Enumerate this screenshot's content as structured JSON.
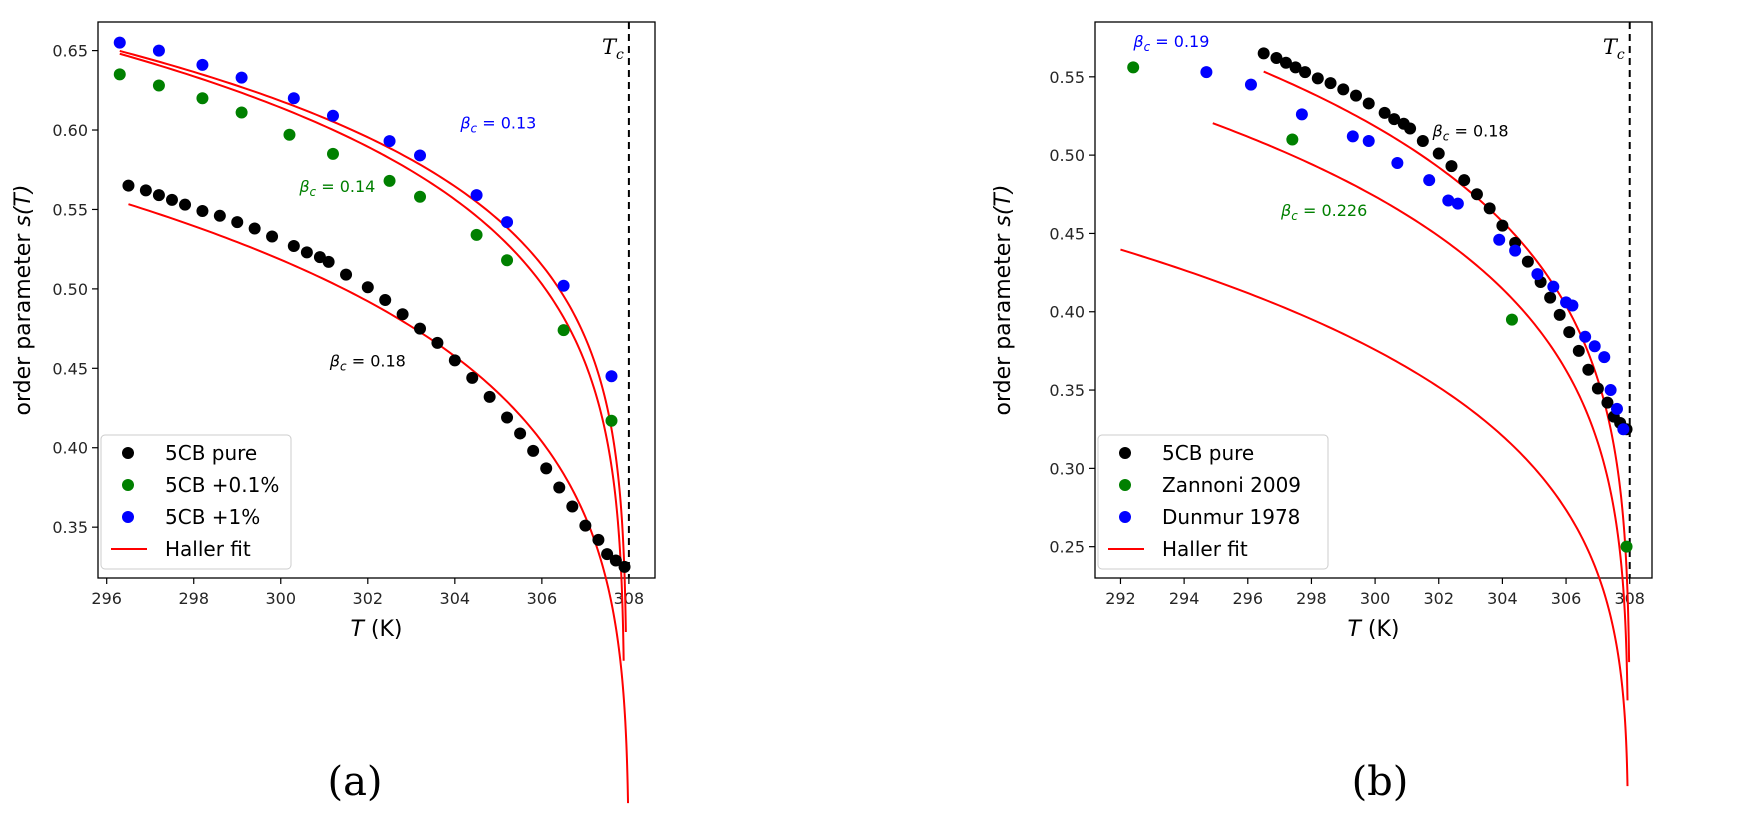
{
  "colors": {
    "pure": "#000000",
    "doped_low": "#008000",
    "doped_high": "#0000ff",
    "fit": "#ff0000"
  },
  "chart_data": [
    {
      "type": "scatter",
      "panel_label": "(a)",
      "xlabel_var": "T",
      "xlabel_unit": " (K)",
      "ylabel_pre": "order parameter ",
      "ylabel_var": "s(T)",
      "xlim": [
        295.8,
        308.6
      ],
      "ylim": [
        0.318,
        0.668
      ],
      "xticks": [
        296,
        298,
        300,
        302,
        304,
        306,
        308
      ],
      "yticks": [
        0.35,
        0.4,
        0.45,
        0.5,
        0.55,
        0.6,
        0.65
      ],
      "tc_value": 308.0,
      "tc_label": "T",
      "tc_sub": "c",
      "series": [
        {
          "name": "5CB pure",
          "color": "#000000",
          "x": [
            296.5,
            296.9,
            297.2,
            297.5,
            297.8,
            298.2,
            298.6,
            299.0,
            299.4,
            299.8,
            300.3,
            300.6,
            300.9,
            301.1,
            301.5,
            302.0,
            302.4,
            302.8,
            303.2,
            303.6,
            304.0,
            304.4,
            304.8,
            305.2,
            305.5,
            305.8,
            306.1,
            306.4,
            306.7,
            307.0,
            307.3,
            307.5,
            307.7,
            307.9
          ],
          "y": [
            0.565,
            0.562,
            0.559,
            0.556,
            0.553,
            0.549,
            0.546,
            0.542,
            0.538,
            0.533,
            0.527,
            0.523,
            0.52,
            0.517,
            0.509,
            0.501,
            0.493,
            0.484,
            0.475,
            0.466,
            0.455,
            0.444,
            0.432,
            0.419,
            0.409,
            0.398,
            0.387,
            0.375,
            0.363,
            0.351,
            0.342,
            0.333,
            0.329,
            0.325
          ],
          "fit": {
            "A": 1.0,
            "beta": 0.18,
            "Tc": 308.0,
            "xstart": 296.5
          }
        },
        {
          "name": "5CB +0.1%",
          "color": "#008000",
          "x": [
            296.3,
            297.2,
            298.2,
            299.1,
            300.2,
            301.2,
            302.5,
            303.2,
            304.5,
            305.2,
            306.5,
            307.6
          ],
          "y": [
            0.635,
            0.628,
            0.62,
            0.611,
            0.597,
            0.585,
            0.568,
            0.558,
            0.534,
            0.518,
            0.474,
            0.417
          ],
          "fit": {
            "A": 1.0255,
            "beta": 0.14,
            "Tc": 307.9,
            "xstart": 296.3
          }
        },
        {
          "name": "5CB +1%",
          "color": "#0000ff",
          "x": [
            296.3,
            297.2,
            298.2,
            299.1,
            300.3,
            301.2,
            302.5,
            303.2,
            304.5,
            305.2,
            306.5,
            307.6
          ],
          "y": [
            0.655,
            0.65,
            0.641,
            0.633,
            0.62,
            0.609,
            0.593,
            0.584,
            0.559,
            0.542,
            0.502,
            0.445
          ],
          "fit": {
            "A": 0.9946,
            "beta": 0.13,
            "Tc": 307.95,
            "xstart": 296.3
          }
        }
      ],
      "legend": [
        "5CB pure",
        "5CB +0.1%",
        "5CB +1%",
        "Haller fit"
      ],
      "legend_loc": "lower-left",
      "annotations": [
        {
          "text": "β",
          "sub": "c",
          "value": " = 0.18",
          "x": 302.0,
          "y": 0.451,
          "color": "#000000"
        },
        {
          "text": "β",
          "sub": "c",
          "value": " = 0.14",
          "x": 301.3,
          "y": 0.561,
          "color": "#008000"
        },
        {
          "text": "β",
          "sub": "c",
          "value": " = 0.13",
          "x": 305.0,
          "y": 0.601,
          "color": "#0000ff"
        }
      ]
    },
    {
      "type": "scatter",
      "panel_label": "(b)",
      "xlabel_var": "T",
      "xlabel_unit": " (K)",
      "ylabel_pre": "order parameter ",
      "ylabel_var": "s(T)",
      "xlim": [
        291.2,
        308.7
      ],
      "ylim": [
        0.23,
        0.585
      ],
      "xticks": [
        292,
        294,
        296,
        298,
        300,
        302,
        304,
        306,
        308
      ],
      "yticks": [
        0.25,
        0.3,
        0.35,
        0.4,
        0.45,
        0.5,
        0.55
      ],
      "tc_value": 308.0,
      "tc_label": "T",
      "tc_sub": "c",
      "series": [
        {
          "name": "5CB pure",
          "color": "#000000",
          "x": [
            296.5,
            296.9,
            297.2,
            297.5,
            297.8,
            298.2,
            298.6,
            299.0,
            299.4,
            299.8,
            300.3,
            300.6,
            300.9,
            301.1,
            301.5,
            302.0,
            302.4,
            302.8,
            303.2,
            303.6,
            304.0,
            304.4,
            304.8,
            305.2,
            305.5,
            305.8,
            306.1,
            306.4,
            306.7,
            307.0,
            307.3,
            307.5,
            307.7,
            307.9
          ],
          "y": [
            0.565,
            0.562,
            0.559,
            0.556,
            0.553,
            0.549,
            0.546,
            0.542,
            0.538,
            0.533,
            0.527,
            0.523,
            0.52,
            0.517,
            0.509,
            0.501,
            0.493,
            0.484,
            0.475,
            0.466,
            0.455,
            0.444,
            0.432,
            0.419,
            0.409,
            0.398,
            0.387,
            0.375,
            0.363,
            0.351,
            0.342,
            0.333,
            0.329,
            0.325
          ],
          "fit": {
            "A": 1.0,
            "beta": 0.18,
            "Tc": 308.0,
            "xstart": 296.5
          }
        },
        {
          "name": "Zannoni 2009",
          "color": "#008000",
          "x": [
            292.4,
            297.4,
            304.3,
            307.9
          ],
          "y": [
            0.556,
            0.51,
            0.395,
            0.25
          ],
          "fit": {
            "A": 0.8585,
            "beta": 0.226,
            "Tc": 307.95,
            "xstart": 292.0
          }
        },
        {
          "name": "Dunmur 1978",
          "color": "#0000ff",
          "x": [
            294.7,
            296.1,
            297.7,
            299.3,
            299.8,
            300.7,
            301.7,
            302.3,
            302.6,
            303.9,
            304.4,
            305.1,
            305.6,
            306.0,
            306.2,
            306.6,
            306.9,
            307.2,
            307.4,
            307.6,
            307.8
          ],
          "y": [
            0.553,
            0.545,
            0.526,
            0.512,
            0.509,
            0.495,
            0.484,
            0.471,
            0.469,
            0.446,
            0.439,
            0.424,
            0.416,
            0.406,
            0.404,
            0.384,
            0.378,
            0.371,
            0.35,
            0.338,
            0.325
          ],
          "fit": {
            "A": 0.9488,
            "beta": 0.19,
            "Tc": 307.95,
            "xstart": 294.9
          }
        }
      ],
      "legend": [
        "5CB pure",
        "Zannoni 2009",
        "Dunmur 1978",
        "Haller fit"
      ],
      "legend_loc": "lower-left",
      "annotations": [
        {
          "text": "β",
          "sub": "c",
          "value": " = 0.18",
          "x": 303.0,
          "y": 0.512,
          "color": "#000000"
        },
        {
          "text": "β",
          "sub": "c",
          "value": " = 0.226",
          "x": 298.4,
          "y": 0.461,
          "color": "#008000"
        },
        {
          "text": "β",
          "sub": "c",
          "value": " = 0.19",
          "x": 293.6,
          "y": 0.569,
          "color": "#0000ff"
        }
      ]
    }
  ]
}
